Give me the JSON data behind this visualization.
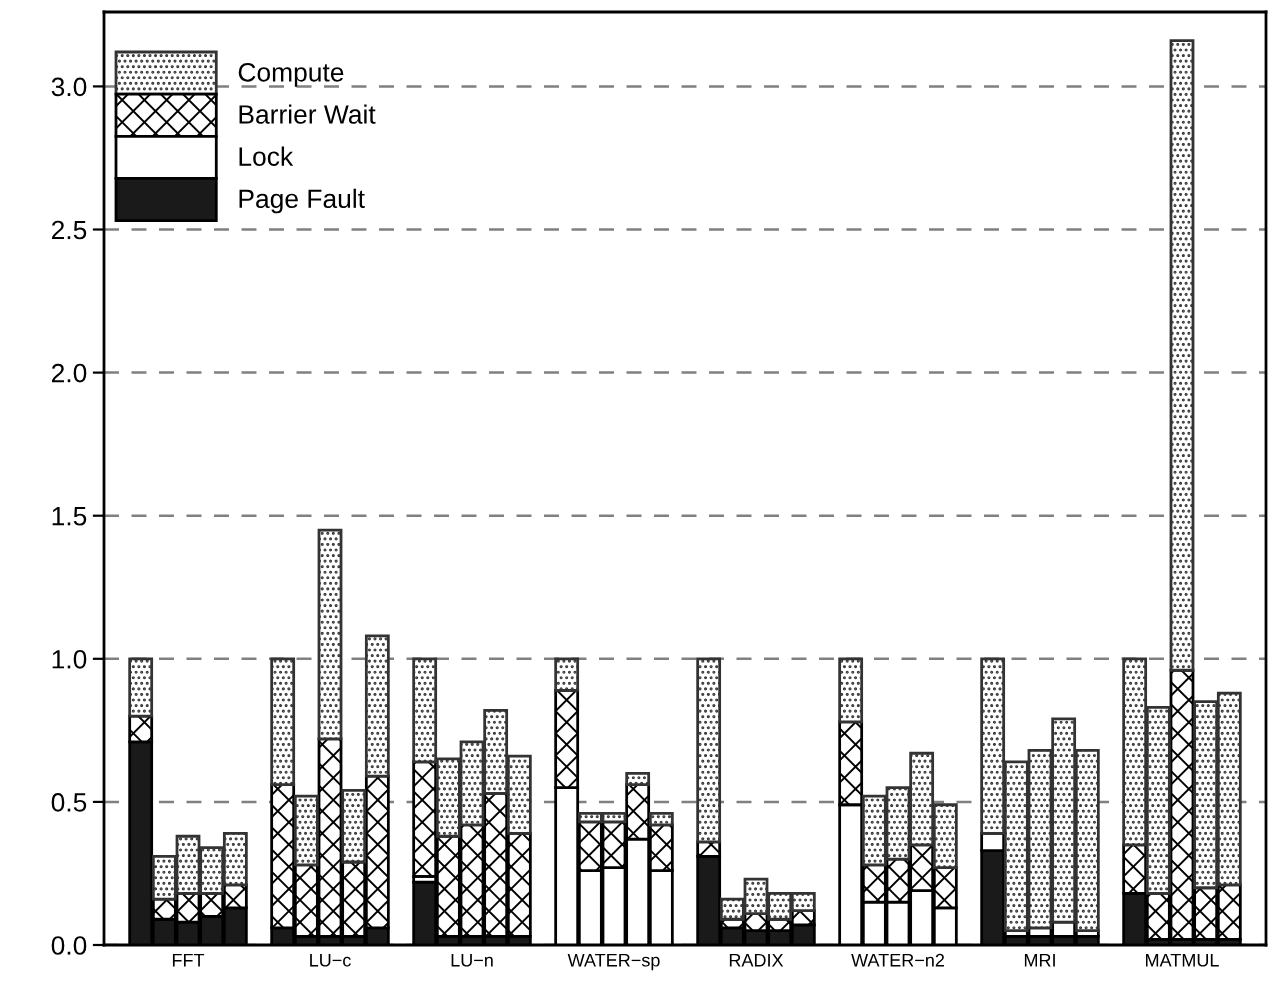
{
  "chart_data": {
    "type": "bar",
    "stacked": true,
    "categories": [
      null,
      null,
      "FFT",
      null,
      null,
      null,
      null,
      null,
      "LU−c",
      null,
      null,
      null,
      null,
      null,
      "LU−n",
      null,
      null,
      null,
      null,
      null,
      "WATER−sp",
      null,
      null,
      null,
      null,
      null,
      "RADIX",
      null,
      null,
      null,
      null,
      null,
      "WATER−n2",
      null,
      null,
      null,
      null,
      null,
      "MRI",
      null,
      null,
      null,
      null,
      null,
      "MATMUL",
      null,
      null
    ],
    "series": [
      {
        "name": "Page Fault",
        "color": "#1a1a1a",
        "values": [
          0.71,
          0.09,
          0.08,
          0.1,
          0.13,
          null,
          0.06,
          0.03,
          0.03,
          0.03,
          0.06,
          null,
          0.22,
          0.03,
          0.03,
          0.03,
          0.03,
          null,
          0,
          0,
          0,
          0,
          0,
          null,
          0.31,
          0.06,
          0.05,
          0.05,
          0.07,
          null,
          0,
          0,
          0,
          0,
          0,
          null,
          0.33,
          0.03,
          0.03,
          0.03,
          0.03,
          null,
          0.18,
          0.02,
          0.02,
          0.02,
          0.02
        ]
      },
      {
        "name": "Lock",
        "color": "#ffffff",
        "values": [
          0,
          0,
          0,
          0,
          0,
          null,
          0,
          0,
          0,
          0,
          0,
          null,
          0.02,
          0,
          0,
          0,
          0,
          null,
          0.55,
          0.26,
          0.27,
          0.37,
          0.26,
          null,
          0,
          0,
          0,
          0,
          0,
          null,
          0.49,
          0.15,
          0.15,
          0.19,
          0.13,
          null,
          0.06,
          0.02,
          0.03,
          0.05,
          0.02,
          null,
          0,
          0,
          0,
          0,
          0
        ]
      },
      {
        "name": "Barrier Wait",
        "color": "#000000",
        "values": [
          0.09,
          0.07,
          0.1,
          0.08,
          0.08,
          null,
          0.5,
          0.25,
          0.69,
          0.26,
          0.53,
          null,
          0.4,
          0.35,
          0.39,
          0.5,
          0.36,
          null,
          0.34,
          0.17,
          0.16,
          0.19,
          0.16,
          null,
          0.05,
          0.03,
          0.06,
          0.04,
          0.05,
          null,
          0.29,
          0.13,
          0.15,
          0.16,
          0.14,
          null,
          0,
          0,
          0,
          0,
          0,
          null,
          0.17,
          0.16,
          0.94,
          0.18,
          0.19
        ]
      },
      {
        "name": "Compute",
        "color": "#333333",
        "values": [
          0.2,
          0.15,
          0.2,
          0.16,
          0.18,
          null,
          0.44,
          0.24,
          0.73,
          0.25,
          0.49,
          null,
          0.36,
          0.27,
          0.29,
          0.29,
          0.27,
          null,
          0.11,
          0.03,
          0.03,
          0.04,
          0.04,
          null,
          0.64,
          0.07,
          0.12,
          0.09,
          0.06,
          null,
          0.22,
          0.24,
          0.25,
          0.32,
          0.22,
          null,
          0.61,
          0.59,
          0.62,
          0.71,
          0.63,
          null,
          0.65,
          0.65,
          2.2,
          0.65,
          0.67
        ]
      }
    ],
    "ylim": [
      0,
      3.26
    ],
    "yticks": [
      {
        "value": 0,
        "label": "0.0"
      },
      {
        "value": 0.5,
        "label": "0.5"
      },
      {
        "value": 1,
        "label": "1.0"
      },
      {
        "value": 1.5,
        "label": "1.5"
      },
      {
        "value": 2,
        "label": "2.0"
      },
      {
        "value": 2.5,
        "label": "2.5"
      },
      {
        "value": 3,
        "label": "3.0"
      }
    ],
    "grid": "y",
    "legend": "top left"
  }
}
